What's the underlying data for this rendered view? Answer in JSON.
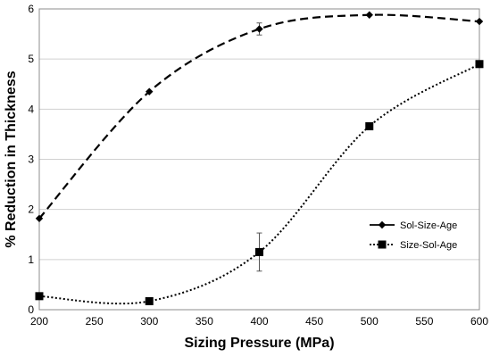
{
  "chart_data": {
    "type": "line",
    "xlabel": "Sizing Pressure (MPa)",
    "ylabel": "% Reduction in Thickness",
    "xlim": [
      200,
      600
    ],
    "ylim": [
      0,
      6
    ],
    "xticks": [
      200,
      250,
      300,
      350,
      400,
      450,
      500,
      550,
      600
    ],
    "yticks": [
      0,
      1,
      2,
      3,
      4,
      5,
      6
    ],
    "grid": "horizontal",
    "legend_position": "right-middle",
    "series": [
      {
        "name": "Sol-Size-Age",
        "marker": "diamond",
        "line_style": "dashed",
        "color": "#000000",
        "x": [
          200,
          300,
          400,
          500,
          600
        ],
        "y": [
          1.82,
          4.35,
          5.6,
          5.88,
          5.75
        ],
        "error": [
          0,
          0,
          0.12,
          0,
          0
        ]
      },
      {
        "name": "Size-Sol-Age",
        "marker": "square",
        "line_style": "dotted",
        "color": "#000000",
        "x": [
          200,
          300,
          400,
          500,
          600
        ],
        "y": [
          0.27,
          0.17,
          1.15,
          3.66,
          4.9
        ],
        "error": [
          0,
          0,
          0.38,
          0,
          0
        ]
      }
    ]
  }
}
